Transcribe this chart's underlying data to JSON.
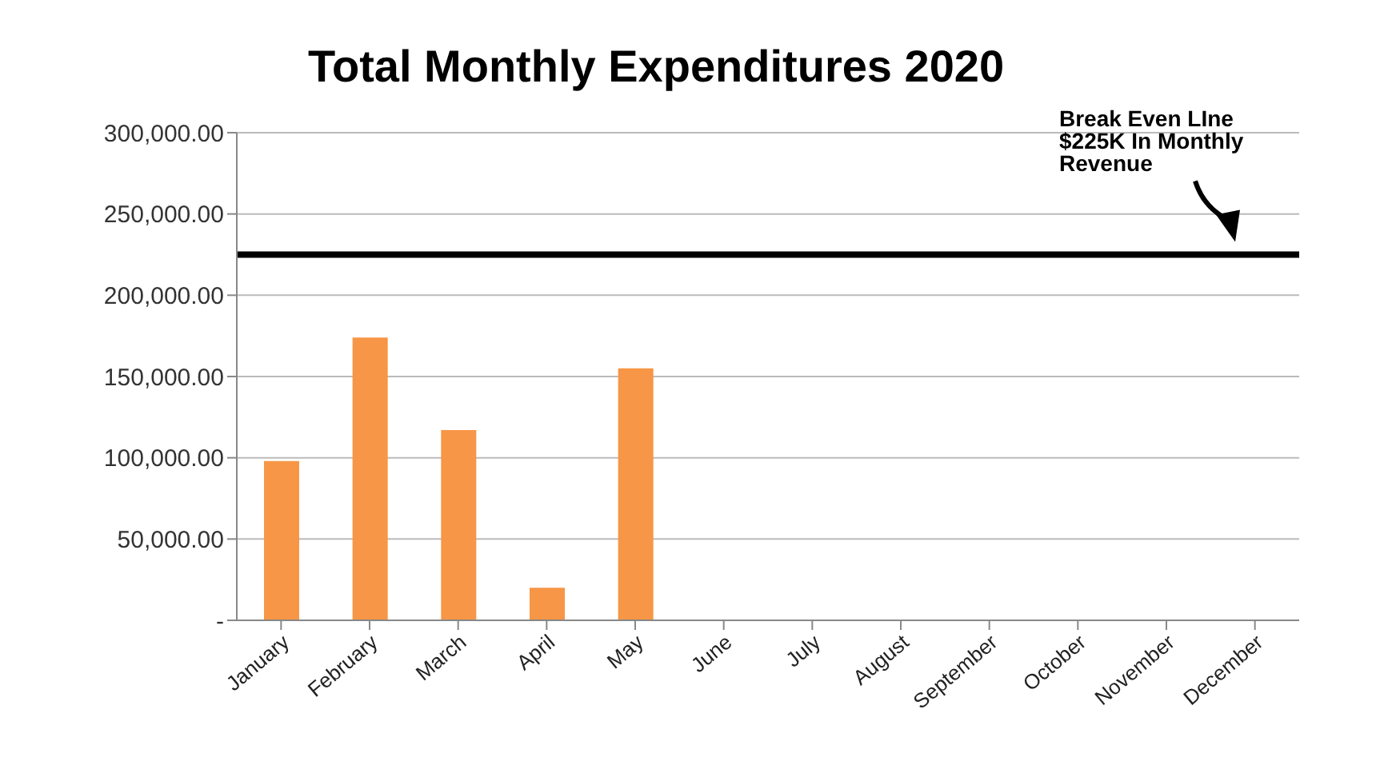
{
  "chart_data": {
    "type": "bar",
    "title": "Total Monthly Expenditures 2020",
    "categories": [
      "January",
      "February",
      "March",
      "April",
      "May",
      "June",
      "July",
      "August",
      "September",
      "October",
      "November",
      "December"
    ],
    "values": [
      98000,
      174000,
      117000,
      20000,
      155000,
      0,
      0,
      0,
      0,
      0,
      0,
      0
    ],
    "color": "#f79646",
    "ylim": [
      0,
      300000
    ],
    "yticks": [
      {
        "value": 0,
        "label": "-"
      },
      {
        "value": 50000,
        "label": "50,000.00"
      },
      {
        "value": 100000,
        "label": "100,000.00"
      },
      {
        "value": 150000,
        "label": "150,000.00"
      },
      {
        "value": 200000,
        "label": "200,000.00"
      },
      {
        "value": 250000,
        "label": "250,000.00"
      },
      {
        "value": 300000,
        "label": "300,000.00"
      }
    ],
    "grid": "y",
    "ref_lines": [
      {
        "axis": "y",
        "value": 225000,
        "label": "Break Even LIne $225K In Monthly Revenue",
        "color": "#000000"
      }
    ]
  }
}
